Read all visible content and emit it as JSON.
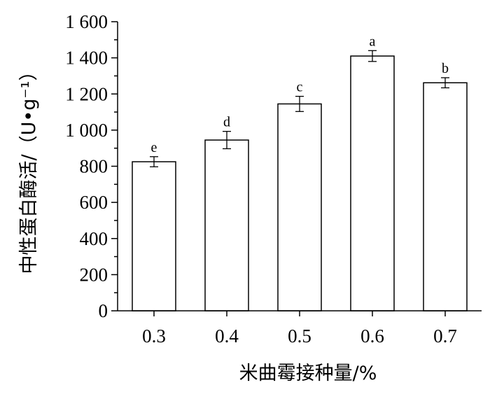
{
  "chart_data": {
    "type": "bar",
    "categories": [
      "0.3",
      "0.4",
      "0.5",
      "0.6",
      "0.7"
    ],
    "values": [
      825,
      945,
      1145,
      1410,
      1262
    ],
    "errors": [
      28,
      48,
      42,
      30,
      28
    ],
    "significance": [
      "e",
      "d",
      "c",
      "a",
      "b"
    ],
    "xlabel": "米曲霉接种量/%",
    "ylabel": "中性蛋白酶活/（U•g⁻¹）",
    "ylim": [
      0,
      1600
    ],
    "yticks": [
      0,
      200,
      400,
      600,
      800,
      1000,
      1200,
      1400,
      1600
    ],
    "ytick_labels": [
      "0",
      "200",
      "400",
      "600",
      "800",
      "1 000",
      "1 200",
      "1 400",
      "1 600"
    ],
    "grid": false,
    "bar_fill": "#ffffff",
    "bar_stroke": "#000000"
  }
}
